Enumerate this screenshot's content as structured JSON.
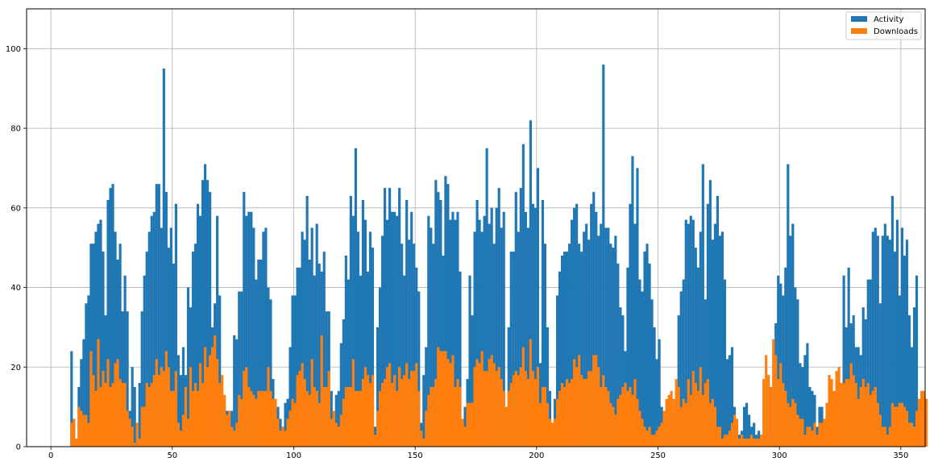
{
  "chart_data": {
    "type": "bar",
    "title": "",
    "xlabel": "",
    "ylabel": "",
    "xlim": [
      -10,
      360
    ],
    "ylim": [
      0,
      110
    ],
    "x_ticks": [
      0,
      50,
      100,
      150,
      200,
      250,
      300,
      350
    ],
    "y_ticks": [
      0,
      20,
      40,
      60,
      80,
      100
    ],
    "grid": true,
    "legend_position": "top-right",
    "x_start": 8,
    "bin_width": 1,
    "series": [
      {
        "name": "Activity",
        "color": "#1f77b4",
        "values": [
          24,
          7,
          2,
          15,
          22,
          27,
          36,
          38,
          51,
          51,
          54,
          56,
          57,
          49,
          33,
          62,
          65,
          66,
          54,
          47,
          51,
          34,
          43,
          34,
          9,
          20,
          15,
          2,
          16,
          34,
          43,
          49,
          54,
          58,
          59,
          66,
          66,
          55,
          95,
          64,
          50,
          55,
          46,
          61,
          23,
          18,
          25,
          18,
          40,
          35,
          49,
          51,
          61,
          58,
          67,
          71,
          67,
          64,
          30,
          36,
          58,
          38,
          13,
          10,
          9,
          9,
          9,
          28,
          27,
          39,
          39,
          64,
          58,
          59,
          59,
          55,
          42,
          47,
          47,
          54,
          55,
          40,
          37,
          17,
          10,
          10,
          7,
          5,
          11,
          12,
          25,
          38,
          38,
          45,
          45,
          54,
          52,
          63,
          47,
          55,
          43,
          56,
          46,
          44,
          49,
          34,
          34,
          14,
          7,
          13,
          14,
          26,
          32,
          48,
          42,
          63,
          58,
          75,
          54,
          43,
          62,
          57,
          44,
          54,
          50,
          5,
          30,
          40,
          53,
          65,
          57,
          65,
          59,
          59,
          58,
          65,
          51,
          43,
          62,
          52,
          59,
          51,
          45,
          39,
          6,
          18,
          25,
          58,
          55,
          51,
          67,
          64,
          62,
          48,
          68,
          66,
          57,
          59,
          57,
          59,
          44,
          6,
          10,
          17,
          43,
          33,
          54,
          62,
          57,
          54,
          58,
          75,
          56,
          60,
          51,
          60,
          65,
          55,
          59,
          9,
          30,
          49,
          49,
          64,
          54,
          65,
          76,
          59,
          55,
          82,
          61,
          60,
          70,
          21,
          62,
          51,
          30,
          14,
          6,
          12,
          38,
          44,
          48,
          49,
          49,
          51,
          57,
          60,
          61,
          51,
          49,
          54,
          56,
          52,
          61,
          64,
          59,
          53,
          56,
          96,
          55,
          55,
          51,
          50,
          53,
          46,
          35,
          33,
          24,
          45,
          61,
          73,
          56,
          70,
          42,
          39,
          49,
          51,
          46,
          37,
          30,
          22,
          27,
          10,
          3,
          4,
          3,
          4,
          4,
          8,
          33,
          39,
          42,
          57,
          56,
          58,
          57,
          50,
          45,
          54,
          71,
          37,
          61,
          67,
          52,
          56,
          63,
          53,
          54,
          42,
          22,
          23,
          25,
          10,
          5,
          3,
          4,
          10,
          11,
          8,
          5,
          6,
          3,
          4,
          3,
          3,
          2,
          4,
          3,
          4,
          31,
          43,
          41,
          38,
          45,
          71,
          53,
          56,
          40,
          37,
          21,
          20,
          23,
          26,
          15,
          14,
          13,
          5,
          10,
          10,
          5,
          8,
          4,
          12,
          11,
          10,
          12,
          11,
          43,
          30,
          45,
          31,
          33,
          25,
          25,
          23,
          35,
          32,
          42,
          42,
          54,
          55,
          53,
          36,
          53,
          56,
          53,
          52,
          63,
          49,
          57,
          38,
          55,
          48,
          52,
          33,
          25,
          35,
          43
        ]
      },
      {
        "name": "Downloads",
        "color": "#ff7f0e",
        "values": [
          6,
          7,
          2,
          10,
          9,
          8,
          8,
          6,
          24,
          18,
          14,
          27,
          15,
          19,
          16,
          22,
          15,
          16,
          21,
          22,
          17,
          16,
          16,
          9,
          7,
          5,
          1,
          6,
          2,
          10,
          10,
          16,
          15,
          16,
          18,
          22,
          18,
          20,
          19,
          24,
          20,
          14,
          14,
          19,
          6,
          4,
          8,
          15,
          7,
          20,
          14,
          16,
          14,
          21,
          16,
          25,
          20,
          23,
          25,
          28,
          22,
          16,
          18,
          13,
          8,
          9,
          5,
          4,
          6,
          13,
          12,
          19,
          20,
          15,
          14,
          13,
          12,
          14,
          14,
          14,
          14,
          20,
          14,
          12,
          12,
          7,
          4,
          5,
          4,
          7,
          9,
          12,
          11,
          18,
          19,
          21,
          17,
          14,
          13,
          22,
          15,
          14,
          11,
          28,
          15,
          15,
          19,
          7,
          9,
          6,
          5,
          8,
          12,
          15,
          15,
          15,
          22,
          14,
          14,
          14,
          17,
          20,
          18,
          16,
          18,
          3,
          9,
          14,
          16,
          17,
          20,
          21,
          16,
          18,
          14,
          20,
          17,
          18,
          21,
          17,
          19,
          19,
          21,
          14,
          4,
          2,
          9,
          13,
          15,
          15,
          17,
          25,
          24,
          24,
          24,
          22,
          21,
          23,
          15,
          17,
          15,
          7,
          5,
          11,
          11,
          11,
          20,
          22,
          21,
          24,
          19,
          19,
          22,
          23,
          21,
          19,
          20,
          17,
          14,
          10,
          14,
          16,
          18,
          19,
          18,
          20,
          25,
          19,
          17,
          27,
          19,
          17,
          20,
          11,
          15,
          15,
          11,
          7,
          6,
          7,
          12,
          14,
          16,
          15,
          17,
          16,
          17,
          22,
          20,
          23,
          18,
          17,
          17,
          19,
          19,
          23,
          23,
          20,
          15,
          18,
          15,
          14,
          11,
          10,
          8,
          12,
          13,
          15,
          16,
          14,
          15,
          13,
          17,
          12,
          9,
          7,
          5,
          4,
          5,
          3,
          3,
          4,
          5,
          6,
          9,
          12,
          13,
          14,
          12,
          17,
          15,
          10,
          12,
          11,
          17,
          13,
          19,
          16,
          14,
          20,
          13,
          16,
          17,
          11,
          12,
          10,
          5,
          5,
          2,
          3,
          3,
          4,
          6,
          8,
          7,
          2,
          3,
          2,
          2,
          2,
          3,
          2,
          2,
          2,
          3,
          17,
          23,
          18,
          15,
          27,
          23,
          17,
          21,
          16,
          14,
          11,
          10,
          12,
          11,
          8,
          7,
          7,
          3,
          5,
          5,
          4,
          6,
          3,
          6,
          6,
          7,
          11,
          18,
          17,
          14,
          19,
          20,
          16,
          16,
          17,
          17,
          21,
          18,
          16,
          12,
          15,
          17,
          15,
          16,
          13,
          14,
          15,
          11,
          8,
          5,
          5,
          3,
          5,
          11,
          10,
          10,
          11,
          11,
          10,
          9,
          6,
          6,
          5,
          9,
          12,
          14,
          14,
          12
        ]
      }
    ]
  }
}
